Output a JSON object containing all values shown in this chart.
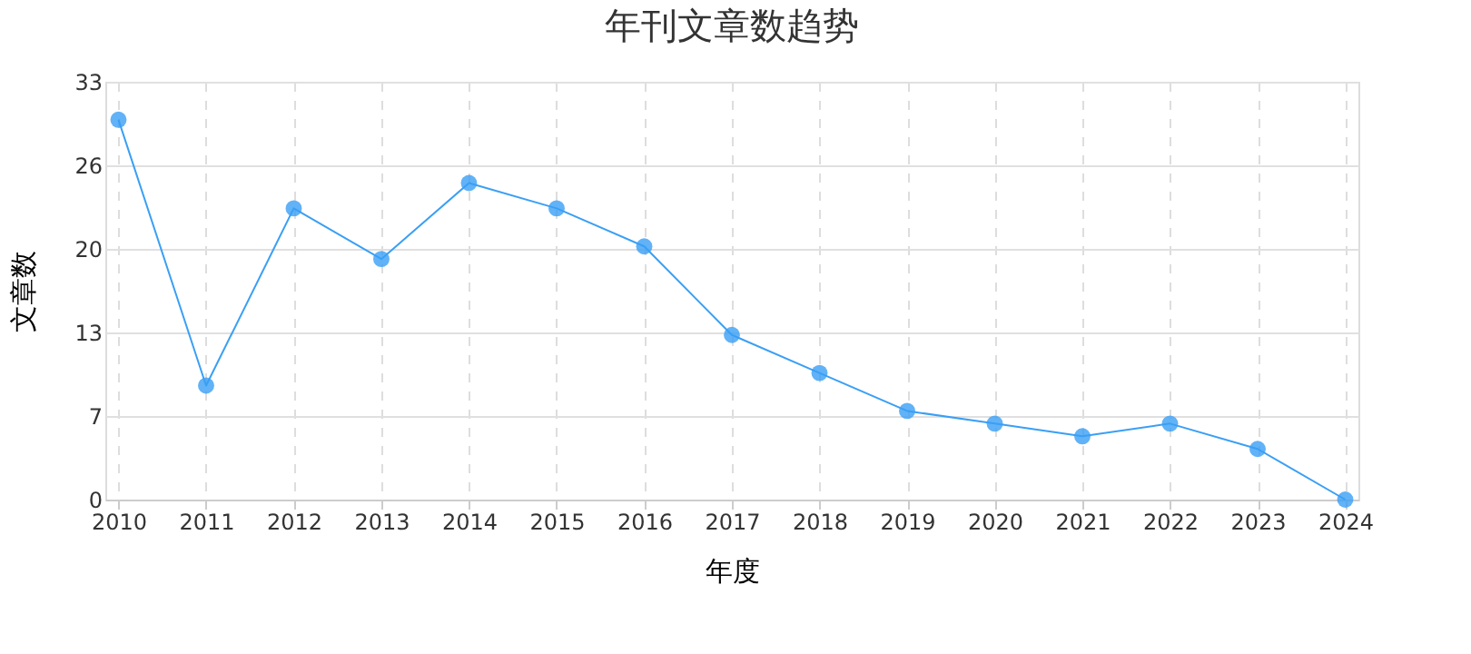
{
  "chart_data": {
    "type": "line",
    "title": "年刊文章数趋势",
    "xlabel": "年度",
    "ylabel": "文章数",
    "categories": [
      "2010",
      "2011",
      "2012",
      "2013",
      "2014",
      "2015",
      "2016",
      "2017",
      "2018",
      "2019",
      "2020",
      "2021",
      "2022",
      "2023",
      "2024"
    ],
    "series": [
      {
        "color": "#3a9ff5",
        "values": [
          30,
          9,
          23,
          19,
          25,
          23,
          20,
          13,
          10,
          7,
          6,
          5,
          6,
          4,
          0
        ]
      }
    ],
    "ylim": [
      0,
      33
    ],
    "yticks": [
      0,
      {
        "value": 6.6,
        "label": "7"
      },
      {
        "value": 13.2,
        "label": "13"
      },
      {
        "value": 19.8,
        "label": "20"
      },
      {
        "value": 26.4,
        "label": "26"
      },
      33
    ],
    "grid": true,
    "marker": "circle",
    "line_style": "solid"
  }
}
